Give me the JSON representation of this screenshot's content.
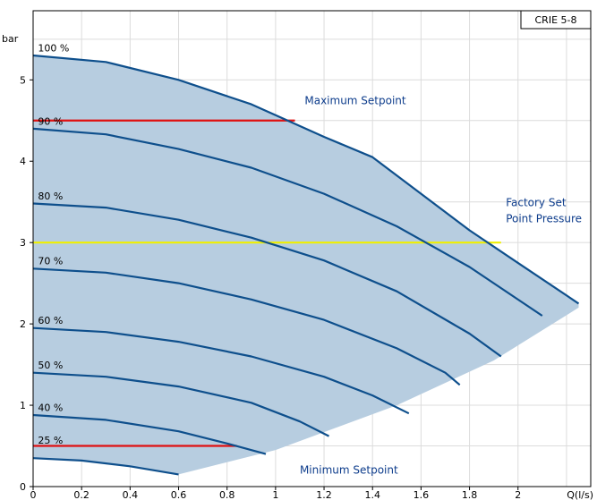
{
  "chart_data": {
    "type": "line",
    "title": "",
    "badge": "CRIE 5-8",
    "ylabel": "bar",
    "xlabel": "Q(l/s)",
    "xlim": [
      0,
      2.3
    ],
    "ylim": [
      0,
      5.85
    ],
    "grid": true,
    "x_ticks": [
      {
        "v": 0,
        "label": "0"
      },
      {
        "v": 0.2,
        "label": "0.2"
      },
      {
        "v": 0.4,
        "label": "0.4"
      },
      {
        "v": 0.6,
        "label": "0.6"
      },
      {
        "v": 0.8,
        "label": "0.8"
      },
      {
        "v": 1,
        "label": "1"
      },
      {
        "v": 1.2,
        "label": "1.2"
      },
      {
        "v": 1.4,
        "label": "1.4"
      },
      {
        "v": 1.6,
        "label": "1.6"
      },
      {
        "v": 1.8,
        "label": "1.8"
      },
      {
        "v": 2,
        "label": "2"
      }
    ],
    "y_ticks": [
      {
        "v": 0,
        "label": "0"
      },
      {
        "v": 1,
        "label": "1"
      },
      {
        "v": 2,
        "label": "2"
      },
      {
        "v": 3,
        "label": "3"
      },
      {
        "v": 4,
        "label": "4"
      },
      {
        "v": 5,
        "label": "5"
      }
    ],
    "region_lower_edge": [
      [
        0.6,
        0.15
      ],
      [
        1.0,
        0.45
      ],
      [
        1.5,
        1.0
      ],
      [
        1.9,
        1.55
      ],
      [
        2.25,
        2.2
      ]
    ],
    "series": [
      {
        "name": "100 %",
        "points": [
          [
            0,
            5.3
          ],
          [
            0.3,
            5.22
          ],
          [
            0.6,
            5.0
          ],
          [
            0.9,
            4.7
          ],
          [
            1.2,
            4.3
          ],
          [
            1.4,
            4.05
          ],
          [
            1.6,
            3.6
          ],
          [
            1.8,
            3.15
          ],
          [
            2.0,
            2.75
          ],
          [
            2.25,
            2.25
          ]
        ]
      },
      {
        "name": "90 %",
        "points": [
          [
            0,
            4.4
          ],
          [
            0.3,
            4.33
          ],
          [
            0.6,
            4.15
          ],
          [
            0.9,
            3.92
          ],
          [
            1.2,
            3.6
          ],
          [
            1.5,
            3.2
          ],
          [
            1.8,
            2.7
          ],
          [
            2.1,
            2.1
          ]
        ]
      },
      {
        "name": "80 %",
        "points": [
          [
            0,
            3.48
          ],
          [
            0.3,
            3.43
          ],
          [
            0.6,
            3.28
          ],
          [
            0.9,
            3.06
          ],
          [
            1.2,
            2.78
          ],
          [
            1.5,
            2.4
          ],
          [
            1.8,
            1.88
          ],
          [
            1.93,
            1.6
          ]
        ]
      },
      {
        "name": "70 %",
        "points": [
          [
            0,
            2.68
          ],
          [
            0.3,
            2.63
          ],
          [
            0.6,
            2.5
          ],
          [
            0.9,
            2.3
          ],
          [
            1.2,
            2.05
          ],
          [
            1.5,
            1.7
          ],
          [
            1.7,
            1.4
          ],
          [
            1.76,
            1.25
          ]
        ]
      },
      {
        "name": "60 %",
        "points": [
          [
            0,
            1.95
          ],
          [
            0.3,
            1.9
          ],
          [
            0.6,
            1.78
          ],
          [
            0.9,
            1.6
          ],
          [
            1.2,
            1.35
          ],
          [
            1.4,
            1.12
          ],
          [
            1.55,
            0.9
          ]
        ]
      },
      {
        "name": "50 %",
        "points": [
          [
            0,
            1.4
          ],
          [
            0.3,
            1.35
          ],
          [
            0.6,
            1.23
          ],
          [
            0.9,
            1.03
          ],
          [
            1.1,
            0.8
          ],
          [
            1.22,
            0.62
          ]
        ]
      },
      {
        "name": "40 %",
        "points": [
          [
            0,
            0.88
          ],
          [
            0.3,
            0.82
          ],
          [
            0.6,
            0.68
          ],
          [
            0.8,
            0.53
          ],
          [
            0.96,
            0.4
          ]
        ]
      },
      {
        "name": "",
        "points": [
          [
            0,
            0.35
          ],
          [
            0.2,
            0.32
          ],
          [
            0.4,
            0.25
          ],
          [
            0.6,
            0.15
          ]
        ]
      }
    ],
    "curve_labels": [
      {
        "text": "100 %",
        "x": 0.02,
        "y": 5.35
      },
      {
        "text": "90 %",
        "x": 0.02,
        "y": 4.45
      },
      {
        "text": "80 %",
        "x": 0.02,
        "y": 3.53
      },
      {
        "text": "70 %",
        "x": 0.02,
        "y": 2.73
      },
      {
        "text": "60 %",
        "x": 0.02,
        "y": 2.0
      },
      {
        "text": "50 %",
        "x": 0.02,
        "y": 1.45
      },
      {
        "text": "40 %",
        "x": 0.02,
        "y": 0.93
      },
      {
        "text": "25 %",
        "x": 0.02,
        "y": 0.53
      }
    ],
    "setpoint_lines": [
      {
        "name": "max",
        "color": "#e01010",
        "y": 4.5,
        "x_end": 1.08
      },
      {
        "name": "factory",
        "color": "#f0f000",
        "y": 3.0,
        "x_end": 1.93
      },
      {
        "name": "min",
        "color": "#e01010",
        "y": 0.5,
        "x_end": 0.84
      }
    ],
    "annotations": [
      {
        "text": "Maximum Setpoint",
        "x": 1.12,
        "y": 4.7
      },
      {
        "text": "Factory Set",
        "x": 1.95,
        "y": 3.45
      },
      {
        "text": "Point Pressure",
        "x": 1.95,
        "y": 3.25
      },
      {
        "text": "Minimum Setpoint",
        "x": 1.1,
        "y": 0.16
      }
    ],
    "colors": {
      "fill": "#b7cde0",
      "curve": "#0e4f8c",
      "grid": "#dcdcdc",
      "text_blue": "#0e3d8c",
      "axis": "#000000"
    }
  }
}
